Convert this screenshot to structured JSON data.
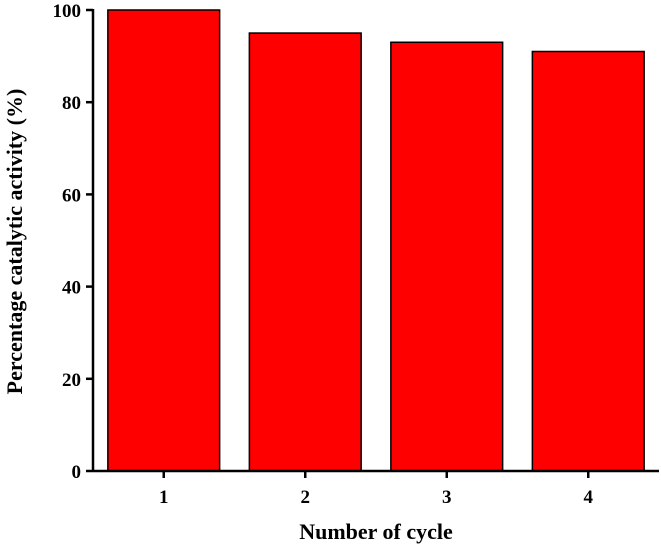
{
  "chart_data": {
    "type": "bar",
    "title": "",
    "xlabel": "Number of cycle",
    "ylabel": "Percentage catalytic activity (%)",
    "categories": [
      "1",
      "2",
      "3",
      "4"
    ],
    "values": [
      100,
      95,
      93,
      91
    ],
    "ylim": [
      0,
      100
    ],
    "yticks": [
      0,
      20,
      40,
      60,
      80,
      100
    ],
    "grid": false,
    "bar_color": "#ff0000",
    "bar_edge_color": "#000000"
  }
}
